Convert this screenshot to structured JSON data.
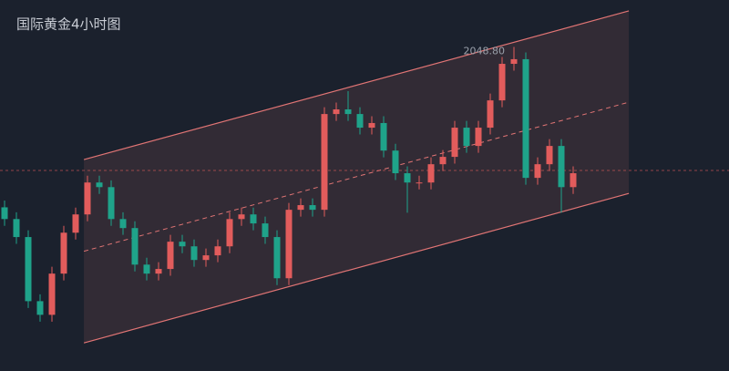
{
  "chart_data": {
    "type": "candlestick",
    "title": "国际黄金4小时图",
    "ylim": [
      1930,
      2066
    ],
    "up_color": "#e25c5c",
    "down_color": "#1fa38a",
    "open": [
      1990.0,
      1985.7,
      1979.1,
      1955.6,
      1950.6,
      1965.7,
      1980.7,
      1987.4,
      1999.1,
      1997.4,
      1985.7,
      1982.4,
      1969.0,
      1965.7,
      1967.4,
      1977.4,
      1975.7,
      1970.7,
      1972.4,
      1975.7,
      1985.7,
      1987.4,
      1984.1,
      1979.1,
      1964.0,
      1989.1,
      1990.8,
      1989.1,
      2024.2,
      2025.9,
      2024.2,
      2019.2,
      2020.9,
      2010.8,
      2002.5,
      1999.1,
      1999.1,
      2005.8,
      2008.5,
      2019.2,
      2012.5,
      2019.2,
      2029.2,
      2042.6,
      2044.3,
      2000.8,
      2005.8,
      2012.5,
      1997.4
    ],
    "high": [
      1992.5,
      1988.2,
      1981.6,
      1958.1,
      1968.2,
      1983.2,
      1989.9,
      2001.6,
      2001.6,
      1999.9,
      1988.2,
      1984.9,
      1971.5,
      1969.9,
      1979.9,
      1979.9,
      1978.2,
      1974.9,
      1978.2,
      1988.2,
      1989.9,
      1989.9,
      1986.6,
      1981.6,
      1991.6,
      1993.3,
      1993.3,
      2026.7,
      2028.4,
      2032.6,
      2026.7,
      2023.4,
      2023.4,
      2013.3,
      2005.0,
      2001.6,
      2008.3,
      2011.0,
      2021.7,
      2021.7,
      2021.7,
      2031.7,
      2045.1,
      2048.8,
      2046.8,
      2008.3,
      2015.0,
      2015.0,
      2005.0
    ],
    "low": [
      1983.2,
      1976.6,
      1953.1,
      1948.1,
      1948.1,
      1963.2,
      1978.2,
      1984.9,
      1994.9,
      1983.2,
      1979.9,
      1966.5,
      1963.2,
      1963.2,
      1964.9,
      1973.2,
      1968.2,
      1968.2,
      1969.9,
      1973.2,
      1983.2,
      1981.6,
      1976.6,
      1961.5,
      1961.5,
      1986.6,
      1986.6,
      1986.6,
      2021.7,
      2021.7,
      2016.7,
      2016.7,
      2008.3,
      2000.0,
      1988.0,
      1996.6,
      1996.6,
      2003.3,
      2006.0,
      2010.0,
      2010.0,
      2016.7,
      2026.7,
      2040.1,
      1998.3,
      1998.3,
      2003.3,
      1988.0,
      1994.9
    ],
    "close": [
      1985.7,
      1979.1,
      1955.6,
      1950.6,
      1965.7,
      1980.7,
      1987.4,
      1999.1,
      1997.4,
      1985.7,
      1982.4,
      1969.0,
      1965.7,
      1967.4,
      1977.4,
      1975.7,
      1970.7,
      1972.4,
      1975.7,
      1985.7,
      1987.4,
      1984.1,
      1979.1,
      1964.0,
      1989.1,
      1990.8,
      1989.1,
      2024.2,
      2025.9,
      2024.2,
      2019.2,
      2020.9,
      2010.8,
      2002.5,
      1999.1,
      1999.1,
      2005.8,
      2008.5,
      2019.2,
      2012.5,
      2019.2,
      2029.2,
      2042.6,
      2044.3,
      2000.8,
      2005.8,
      2012.5,
      1997.4,
      2002.5
    ],
    "annotations": [
      {
        "label": "2048.80",
        "value": 2048.8
      }
    ],
    "channel": {
      "x": [
        6.7,
        52.7
      ],
      "upper": [
        2007.5,
        2062.0
      ],
      "lower": [
        1940.3,
        1995.1
      ],
      "color": "#e07474"
    },
    "price_line": 2003.5
  }
}
